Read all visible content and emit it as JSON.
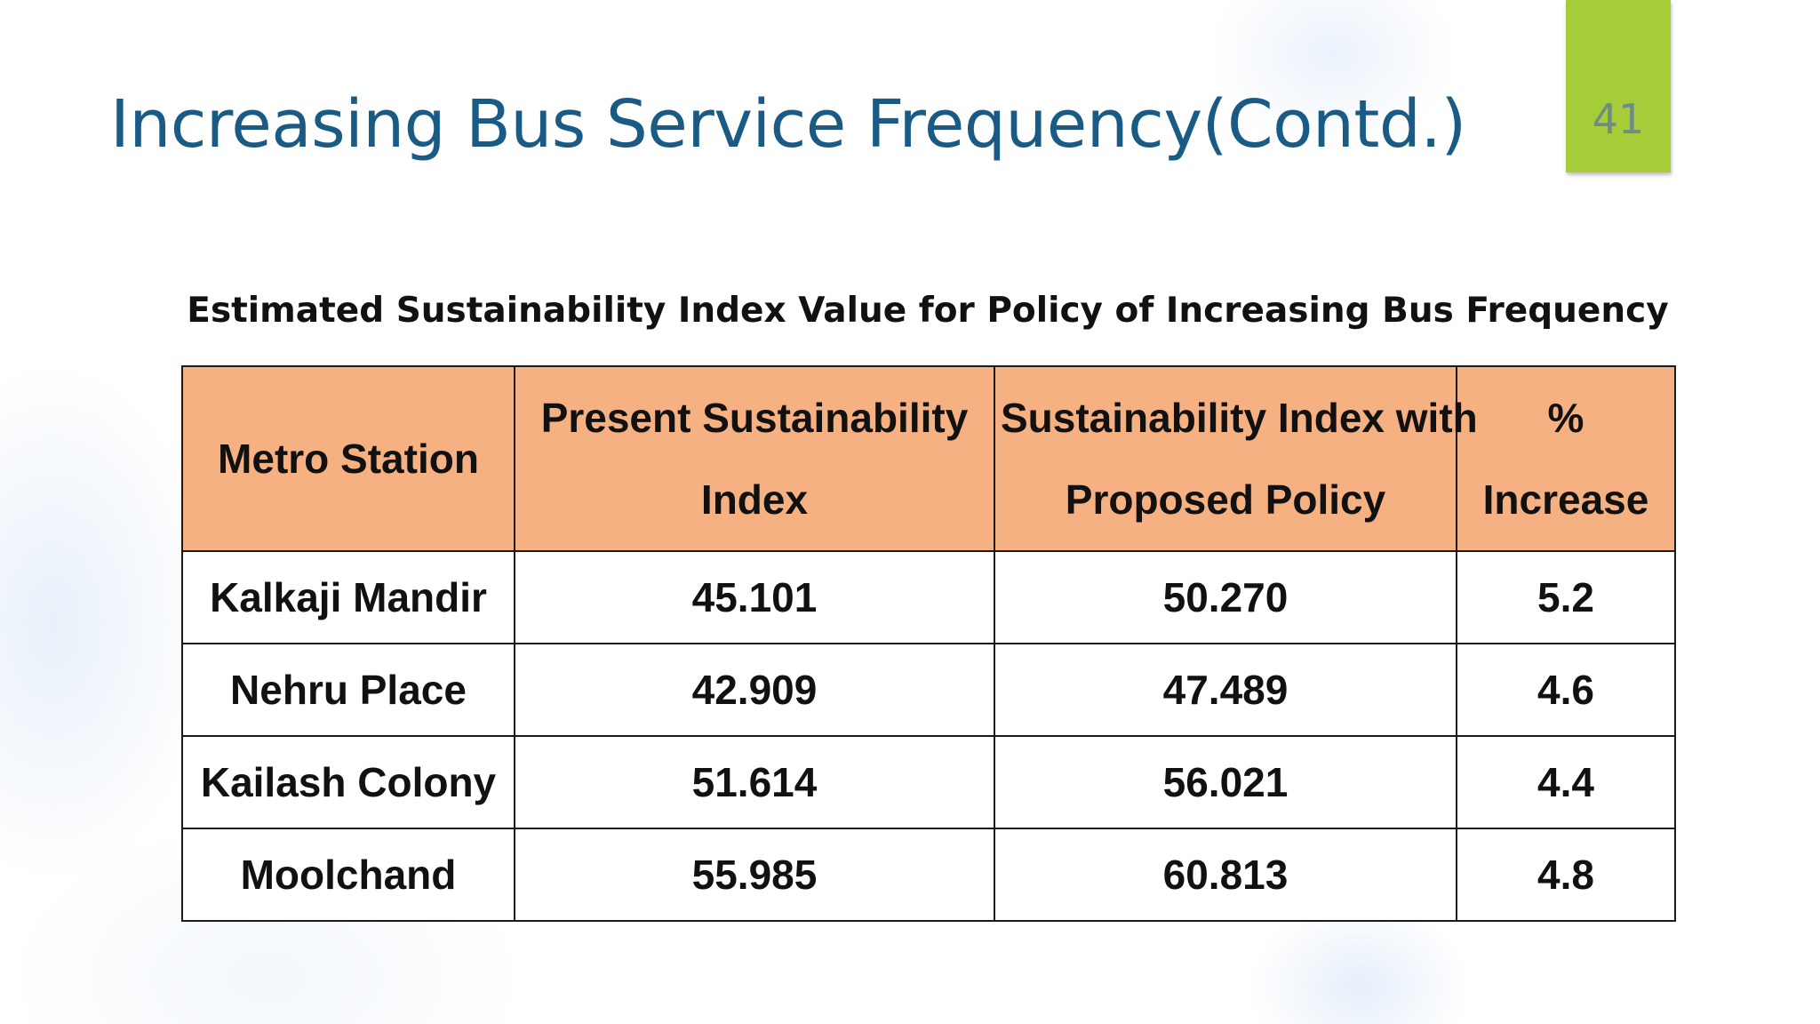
{
  "slide": {
    "title": "Increasing Bus Service Frequency(Contd.)",
    "page_number": "41",
    "badge_color": "#a6cc3a",
    "title_color": "#1a5b86"
  },
  "table": {
    "caption": "Estimated Sustainability Index Value for Policy of Increasing Bus Frequency",
    "header_color": "#f6b183",
    "headers": [
      {
        "lines": [
          "Metro Station"
        ]
      },
      {
        "lines": [
          "Present Sustainability",
          "Index"
        ]
      },
      {
        "lines": [
          "Sustainability Index with",
          "Proposed Policy"
        ]
      },
      {
        "lines": [
          "%",
          "Increase"
        ]
      }
    ],
    "rows": [
      {
        "station": "Kalkaji Mandir",
        "present": "45.101",
        "proposed": "50.270",
        "increase": "5.2"
      },
      {
        "station": "Nehru Place",
        "present": "42.909",
        "proposed": "47.489",
        "increase": "4.6"
      },
      {
        "station": "Kailash Colony",
        "present": "51.614",
        "proposed": "56.021",
        "increase": "4.4"
      },
      {
        "station": "Moolchand",
        "present": "55.985",
        "proposed": "60.813",
        "increase": "4.8"
      }
    ]
  }
}
